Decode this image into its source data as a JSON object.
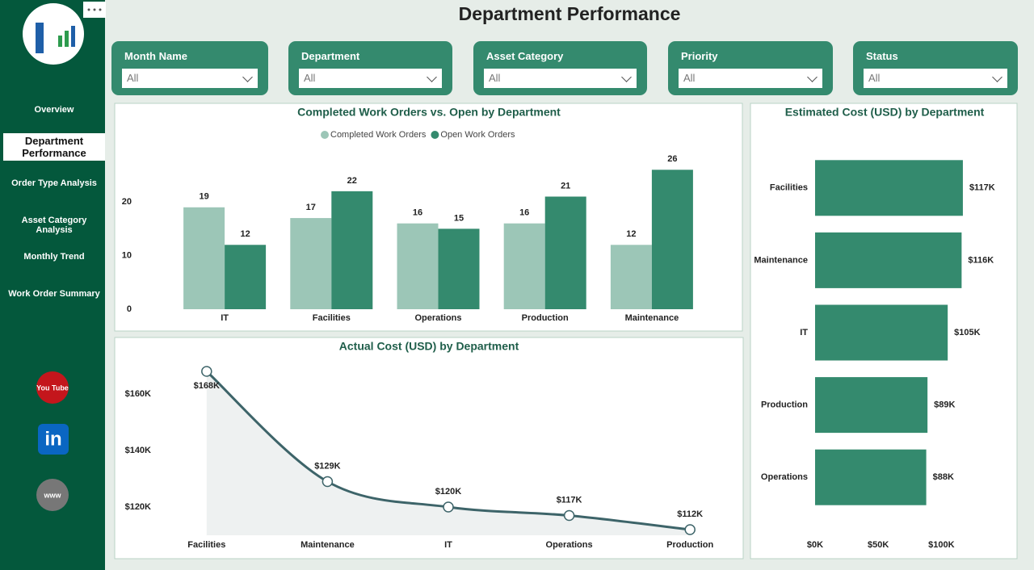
{
  "header": {
    "title": "Department Performance"
  },
  "nav": [
    "Overview",
    "Department Performance",
    "Order Type Analysis",
    "Asset Category Analysis",
    "Monthly Trend",
    "Work Order Summary"
  ],
  "selected_nav": 1,
  "social_links": [
    "You Tube",
    "in",
    "www"
  ],
  "filters": [
    {
      "label": "Month Name",
      "value": "All"
    },
    {
      "label": "Department",
      "value": "All"
    },
    {
      "label": "Asset Category",
      "value": "All"
    },
    {
      "label": "Priority",
      "value": "All"
    },
    {
      "label": "Status",
      "value": "All"
    }
  ],
  "chart_data": [
    {
      "type": "bar",
      "title": "Completed Work Orders vs. Open by Department",
      "categories": [
        "IT",
        "Facilities",
        "Operations",
        "Production",
        "Maintenance"
      ],
      "series": [
        {
          "name": "Completed Work Orders",
          "color": "#9cc6b7",
          "values": [
            19,
            17,
            16,
            16,
            12
          ]
        },
        {
          "name": "Open Work Orders",
          "color": "#348a6e",
          "values": [
            12,
            22,
            15,
            21,
            26
          ]
        }
      ],
      "ylim": [
        0,
        28
      ],
      "yticks": [
        0,
        10,
        20
      ],
      "legend": "top"
    },
    {
      "type": "line",
      "title": "Actual Cost (USD) by Department",
      "categories": [
        "Facilities",
        "Maintenance",
        "IT",
        "Operations",
        "Production"
      ],
      "values": [
        168000,
        129000,
        120000,
        117000,
        112000
      ],
      "value_labels": [
        "$168K",
        "$129K",
        "$120K",
        "$117K",
        "$112K"
      ],
      "color": "#3d6469",
      "area_color": "#eef1f1",
      "ylim": [
        110000,
        170000
      ],
      "yticks": [
        {
          "value": 120000,
          "label": "$120K"
        },
        {
          "value": 140000,
          "label": "$140K"
        },
        {
          "value": 160000,
          "label": "$160K"
        }
      ]
    },
    {
      "type": "bar",
      "horizontal": true,
      "title": "Estimated Cost (USD) by Department",
      "categories": [
        "Facilities",
        "Maintenance",
        "IT",
        "Production",
        "Operations"
      ],
      "values": [
        117000,
        116000,
        105000,
        89000,
        88000
      ],
      "value_labels": [
        "$117K",
        "$116K",
        "$105K",
        "$89K",
        "$88K"
      ],
      "color": "#348a6e",
      "xlim": [
        0,
        110000
      ],
      "xticks": [
        {
          "value": 0,
          "label": "$0K"
        },
        {
          "value": 50000,
          "label": "$50K"
        },
        {
          "value": 100000,
          "label": "$100K"
        }
      ]
    }
  ]
}
